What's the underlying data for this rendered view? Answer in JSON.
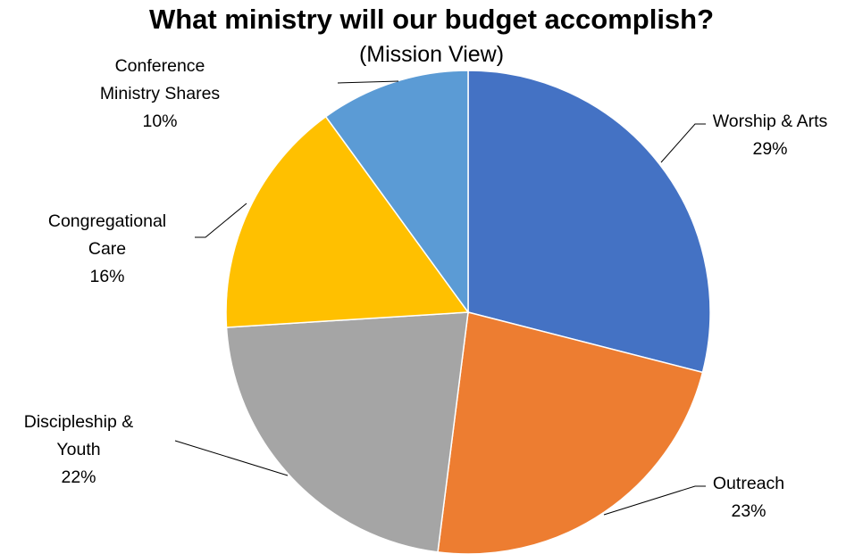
{
  "chart_data": {
    "type": "pie",
    "title": "What ministry will our budget accomplish?",
    "subtitle": "(Mission View)",
    "start_angle_deg": 0,
    "direction": "clockwise",
    "slices": [
      {
        "label": [
          "Worship & Arts"
        ],
        "percent_label": "29%",
        "value": 29,
        "color": "#4472C4"
      },
      {
        "label": [
          "Outreach"
        ],
        "percent_label": "23%",
        "value": 23,
        "color": "#ED7D31"
      },
      {
        "label": [
          "Discipleship &",
          "Youth"
        ],
        "percent_label": "22%",
        "value": 22,
        "color": "#A5A5A5"
      },
      {
        "label": [
          "Congregational",
          "Care"
        ],
        "percent_label": "16%",
        "value": 16,
        "color": "#FFC000"
      },
      {
        "label": [
          "Conference",
          "Ministry Shares"
        ],
        "percent_label": "10%",
        "value": 10,
        "color": "#5B9BD5"
      }
    ]
  }
}
